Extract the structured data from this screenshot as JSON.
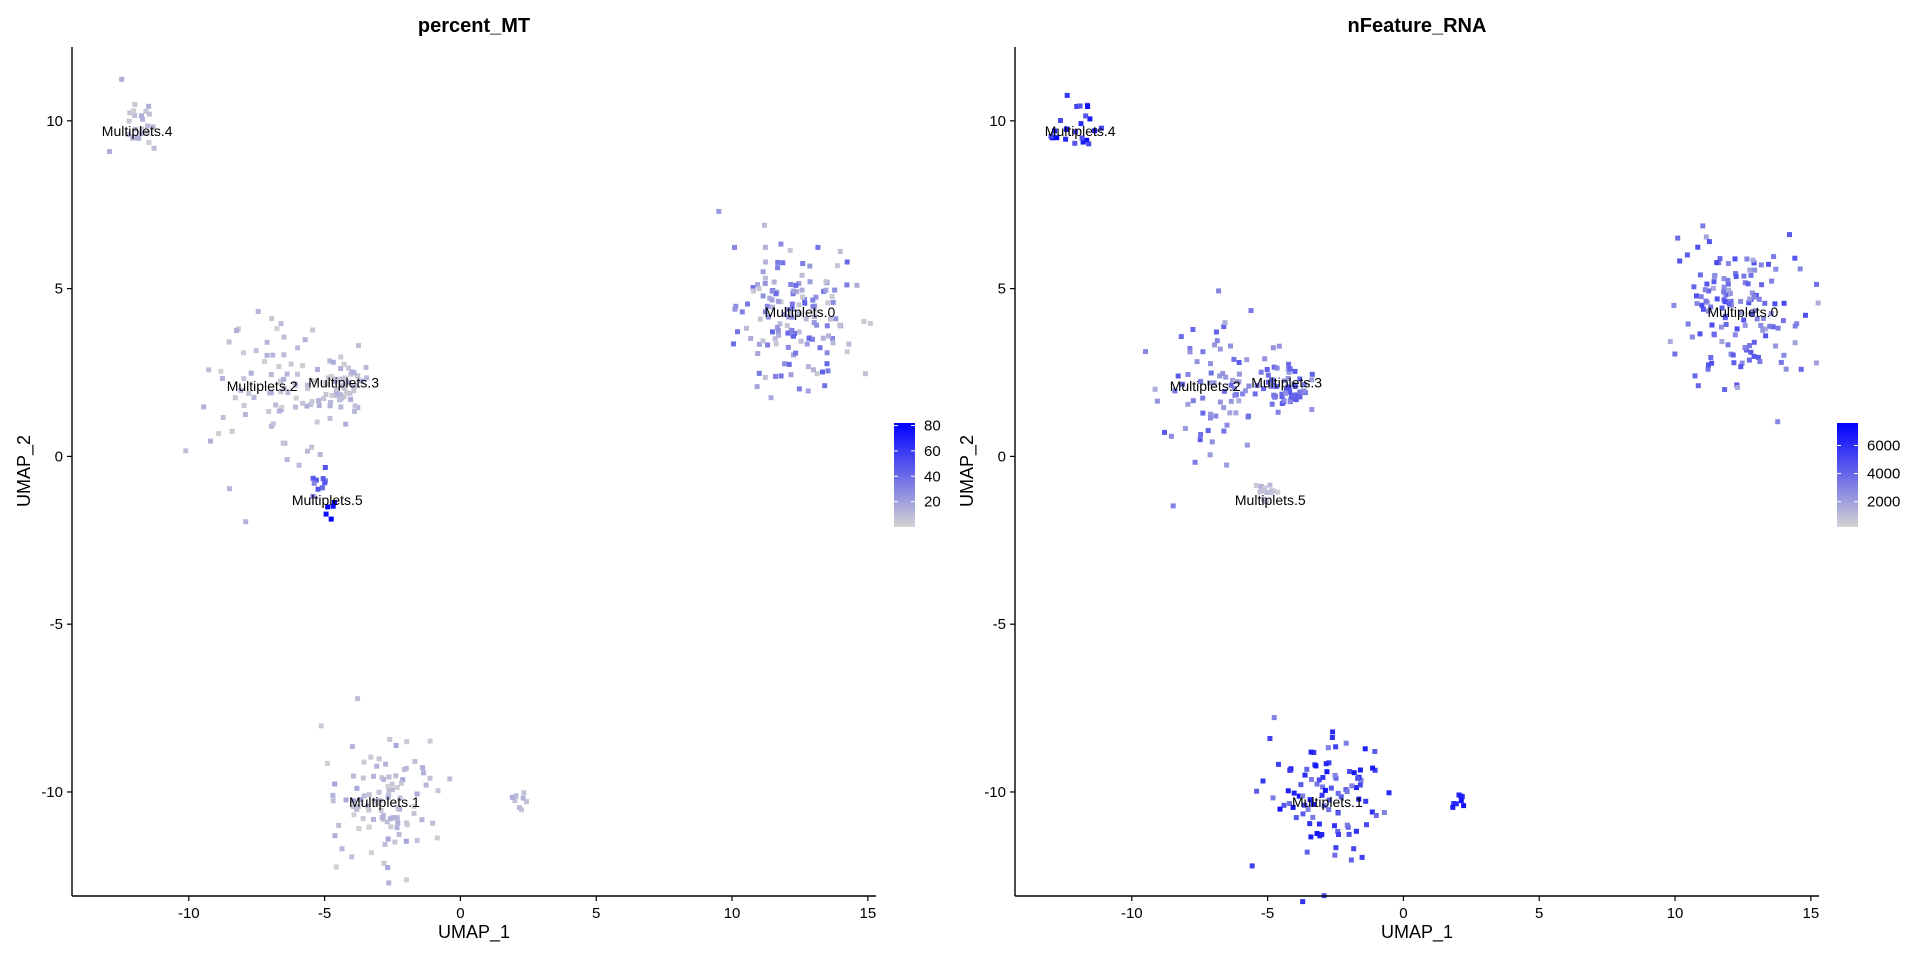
{
  "chart_data": [
    {
      "type": "scatter",
      "title": "percent_MT",
      "xlabel": "UMAP_1",
      "ylabel": "UMAP_2",
      "xlim": [
        -14.3,
        15.3
      ],
      "ylim": [
        -13.1,
        12.2
      ],
      "x_ticks": [
        -10,
        -5,
        0,
        5,
        10,
        15
      ],
      "y_ticks": [
        -10,
        -5,
        0,
        5,
        10
      ],
      "grid": false,
      "legend_position": "right",
      "legend": {
        "ticks": [
          20,
          40,
          60,
          80
        ],
        "min": 0,
        "max": 82,
        "low_color": "#d3d3d3",
        "high_color": "#0000ff"
      },
      "cluster_labels": [
        {
          "text": "Multiplets.0",
          "x": 12.5,
          "y": 4.3
        },
        {
          "text": "Multiplets.1",
          "x": -2.8,
          "y": -10.3
        },
        {
          "text": "Multiplets.2",
          "x": -7.3,
          "y": 2.1
        },
        {
          "text": "Multiplets.3",
          "x": -4.3,
          "y": 2.2
        },
        {
          "text": "Multiplets.4",
          "x": -11.9,
          "y": 9.7
        },
        {
          "text": "Multiplets.5",
          "x": -4.9,
          "y": -1.3
        }
      ],
      "clusters": [
        {
          "name": "Multiplets.0",
          "x": 12.4,
          "y": 4.4,
          "count": 150,
          "value_range": [
            3,
            45
          ]
        },
        {
          "name": "Multiplets.1",
          "x": -2.8,
          "y": -10.2,
          "count": 100,
          "value_range": [
            1,
            18
          ]
        },
        {
          "name": "Multiplets.2",
          "x": -7.0,
          "y": 2.0,
          "count": 80,
          "value_range": [
            1,
            15
          ]
        },
        {
          "name": "Multiplets.3",
          "x": -4.3,
          "y": 2.0,
          "count": 55,
          "value_range": [
            1,
            15
          ]
        },
        {
          "name": "Multiplets.4",
          "x": -11.9,
          "y": 9.9,
          "count": 25,
          "value_range": [
            1,
            15
          ]
        },
        {
          "name": "Multiplets.5",
          "x": -5.2,
          "y": -0.8,
          "count": 10,
          "value_range": [
            30,
            50
          ]
        },
        {
          "name": "Multiplets.5",
          "x": -4.6,
          "y": -1.5,
          "count": 5,
          "value_range": [
            75,
            82
          ]
        },
        {
          "name": "Multiplets.1",
          "x": 2.1,
          "y": -10.15,
          "count": 8,
          "value_range": [
            1,
            15
          ]
        }
      ]
    },
    {
      "type": "scatter",
      "title": "nFeature_RNA",
      "xlabel": "UMAP_1",
      "ylabel": "UMAP_2",
      "xlim": [
        -14.3,
        15.3
      ],
      "ylim": [
        -13.1,
        12.2
      ],
      "x_ticks": [
        -10,
        -5,
        0,
        5,
        10,
        15
      ],
      "y_ticks": [
        -10,
        -5,
        0,
        5,
        10
      ],
      "grid": false,
      "legend_position": "right",
      "legend": {
        "ticks": [
          2000,
          4000,
          6000
        ],
        "min": 200,
        "max": 7600,
        "low_color": "#d3d3d3",
        "high_color": "#0000ff"
      },
      "cluster_labels": [
        {
          "text": "Multiplets.0",
          "x": 12.5,
          "y": 4.3
        },
        {
          "text": "Multiplets.1",
          "x": -2.8,
          "y": -10.3
        },
        {
          "text": "Multiplets.2",
          "x": -7.3,
          "y": 2.1
        },
        {
          "text": "Multiplets.3",
          "x": -4.3,
          "y": 2.2
        },
        {
          "text": "Multiplets.4",
          "x": -11.9,
          "y": 9.7
        },
        {
          "text": "Multiplets.5",
          "x": -4.9,
          "y": -1.3
        }
      ],
      "clusters": [
        {
          "name": "Multiplets.0",
          "x": 12.4,
          "y": 4.4,
          "count": 150,
          "value_range": [
            1500,
            5000
          ]
        },
        {
          "name": "Multiplets.1",
          "x": -2.8,
          "y": -10.2,
          "count": 100,
          "value_range": [
            3000,
            7000
          ]
        },
        {
          "name": "Multiplets.2",
          "x": -7.0,
          "y": 2.0,
          "count": 80,
          "value_range": [
            1500,
            4500
          ]
        },
        {
          "name": "Multiplets.3",
          "x": -4.3,
          "y": 2.0,
          "count": 55,
          "value_range": [
            2000,
            5000
          ]
        },
        {
          "name": "Multiplets.4",
          "x": -11.9,
          "y": 9.9,
          "count": 25,
          "value_range": [
            4500,
            7500
          ]
        },
        {
          "name": "Multiplets.5",
          "x": -5.0,
          "y": -1.0,
          "count": 15,
          "value_range": [
            300,
            1500
          ]
        },
        {
          "name": "Multiplets.1",
          "x": 2.1,
          "y": -10.15,
          "count": 8,
          "value_range": [
            5000,
            7600
          ]
        }
      ]
    }
  ]
}
